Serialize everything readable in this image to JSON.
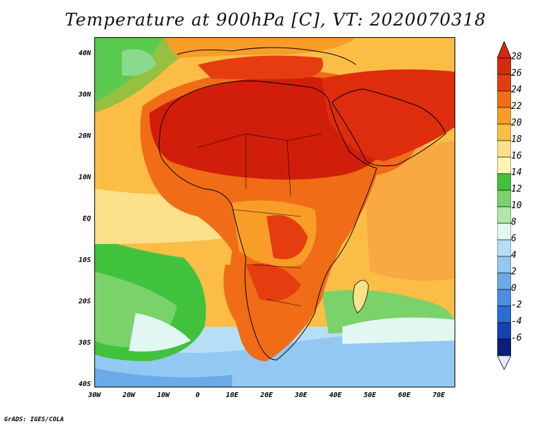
{
  "title": "Temperature at 900hPa [C], VT: 2020070318",
  "footer": "GrADS: IGES/COLA",
  "lat_labels": [
    "40N",
    "30N",
    "20N",
    "10N",
    "EQ",
    "10S",
    "20S",
    "30S",
    "40S"
  ],
  "lon_labels": [
    "30W",
    "20W",
    "10W",
    "0",
    "10E",
    "20E",
    "30E",
    "40E",
    "50E",
    "60E",
    "70E"
  ],
  "colorbar": {
    "labels": [
      "28",
      "26",
      "24",
      "22",
      "20",
      "18",
      "16",
      "14",
      "12",
      "10",
      "8",
      "6",
      "4",
      "2",
      "0",
      "-2",
      "-4",
      "-6"
    ],
    "colors": [
      "#d42a0e",
      "#e53d10",
      "#f06c16",
      "#f79d28",
      "#fbbd45",
      "#fde08a",
      "#fff4b0",
      "#41c23c",
      "#7ad26b",
      "#b2e8a6",
      "#e2f7f2",
      "#b6def7",
      "#92c8f2",
      "#6aaae8",
      "#4a8edf",
      "#2c6cd4",
      "#1642b0",
      "#0b1f7a"
    ]
  },
  "regions": [
    {
      "name": "sahara-heat",
      "color": "#d11e0a"
    },
    {
      "name": "arabia-heat",
      "color": "#dd2d0c"
    },
    {
      "name": "south-atlantic-cool",
      "color": "#40c23a"
    },
    {
      "name": "southern-ocean-cold",
      "color": "#92c8f2"
    },
    {
      "name": "indian-ocean-warm",
      "color": "#f9a941"
    }
  ]
}
